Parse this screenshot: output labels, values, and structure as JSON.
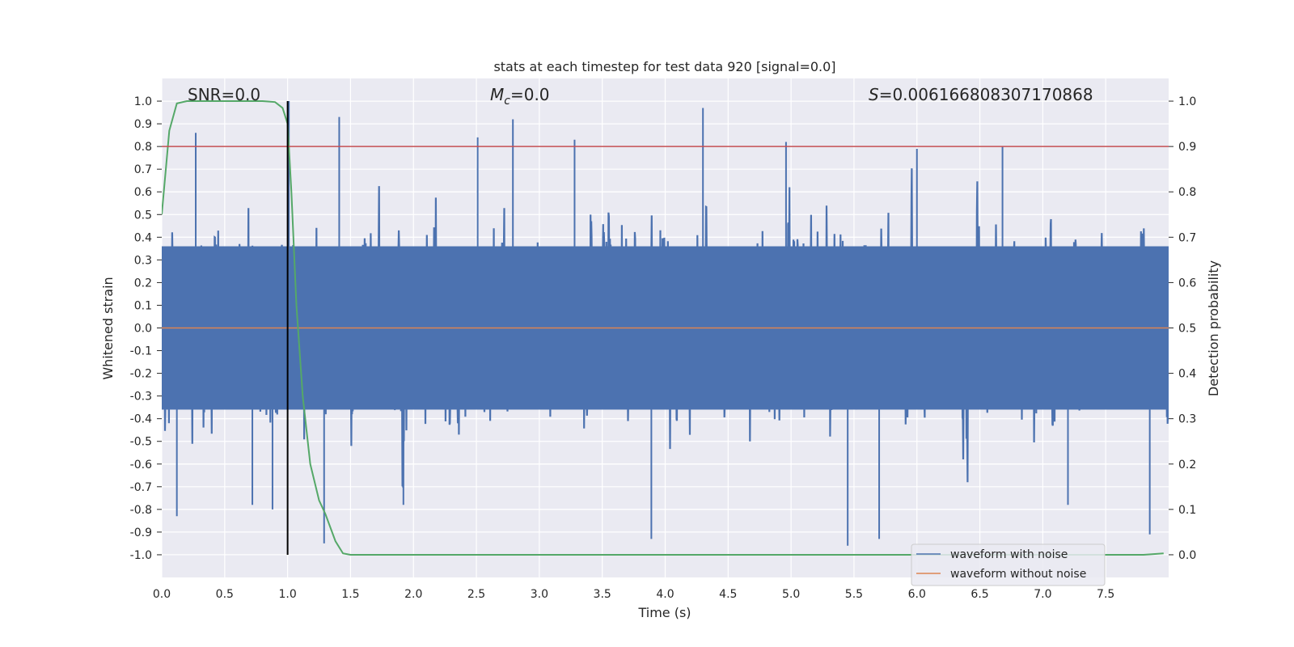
{
  "chart_data": {
    "type": "line",
    "title": "stats at each timestep for test data 920 [signal=0.0]",
    "xlabel": "Time (s)",
    "ylabel": "Whitened strain",
    "y2label": "Detection probability",
    "xlim": [
      0.0,
      8.0
    ],
    "ylim": [
      -1.1,
      1.1
    ],
    "y2lim": [
      -0.05,
      1.05
    ],
    "xticks": [
      "0.0",
      "0.5",
      "1.0",
      "1.5",
      "2.0",
      "2.5",
      "3.0",
      "3.5",
      "4.0",
      "4.5",
      "5.0",
      "5.5",
      "6.0",
      "6.5",
      "7.0",
      "7.5"
    ],
    "yticks": [
      "1.0",
      "0.9",
      "0.8",
      "0.7",
      "0.6",
      "0.5",
      "0.4",
      "0.3",
      "0.2",
      "0.1",
      "0.0",
      "-0.1",
      "-0.2",
      "-0.3",
      "-0.4",
      "-0.5",
      "-0.6",
      "-0.7",
      "-0.8",
      "-0.9",
      "-1.0"
    ],
    "y2ticks": [
      "1.0",
      "0.9",
      "0.8",
      "0.7",
      "0.6",
      "0.5",
      "0.4",
      "0.3",
      "0.2",
      "0.1",
      "0.0"
    ],
    "grid": true,
    "legend_position": "bottom-right",
    "annotations": {
      "snr_prefix": "SNR=",
      "snr_value": "0.0",
      "mc_symbol": "M",
      "mc_subscript": "c",
      "mc_value": "=0.0",
      "s_symbol": "S",
      "s_value": "=0.006166808307170868"
    },
    "series": [
      {
        "name": "waveform with noise",
        "color": "#4c72b0",
        "description_kind": "dense noise",
        "spikes": [
          {
            "x": 0.12,
            "y": -0.83
          },
          {
            "x": 0.27,
            "y": 0.86
          },
          {
            "x": 0.88,
            "y": -0.8
          },
          {
            "x": 1.01,
            "y": 1.0
          },
          {
            "x": 1.41,
            "y": 0.93
          },
          {
            "x": 1.29,
            "y": -0.95
          },
          {
            "x": 2.79,
            "y": 0.92
          },
          {
            "x": 3.89,
            "y": -0.93
          },
          {
            "x": 4.3,
            "y": 0.97
          },
          {
            "x": 5.45,
            "y": -0.96
          },
          {
            "x": 5.7,
            "y": -0.93
          },
          {
            "x": 7.85,
            "y": -0.91
          },
          {
            "x": 0.72,
            "y": -0.78
          },
          {
            "x": 1.92,
            "y": -0.78
          },
          {
            "x": 4.96,
            "y": 0.82
          },
          {
            "x": 6.68,
            "y": 0.8
          },
          {
            "x": 2.51,
            "y": 0.84
          },
          {
            "x": 3.28,
            "y": 0.83
          },
          {
            "x": 6.0,
            "y": 0.79
          },
          {
            "x": 7.2,
            "y": -0.78
          }
        ]
      },
      {
        "name": "waveform without noise",
        "color": "#dd8452",
        "points": [
          [
            0.0,
            0.0
          ],
          [
            8.0,
            0.0
          ]
        ]
      },
      {
        "name": "detection probability",
        "color": "#55a868",
        "axis": "right",
        "points": [
          [
            0.0,
            0.75
          ],
          [
            0.06,
            0.935
          ],
          [
            0.12,
            0.995
          ],
          [
            0.2,
            1.0
          ],
          [
            0.5,
            1.0
          ],
          [
            0.8,
            1.0
          ],
          [
            0.9,
            0.998
          ],
          [
            0.96,
            0.985
          ],
          [
            1.0,
            0.95
          ],
          [
            1.03,
            0.8
          ],
          [
            1.07,
            0.55
          ],
          [
            1.12,
            0.35
          ],
          [
            1.18,
            0.2
          ],
          [
            1.25,
            0.12
          ],
          [
            1.3,
            0.09
          ],
          [
            1.38,
            0.03
          ],
          [
            1.44,
            0.003
          ],
          [
            1.5,
            0.0
          ],
          [
            3.0,
            0.0
          ],
          [
            5.0,
            0.0
          ],
          [
            7.0,
            0.0
          ],
          [
            7.8,
            0.0
          ],
          [
            7.96,
            0.003
          ]
        ]
      }
    ],
    "vline": {
      "x": 1.0,
      "color": "#000000"
    },
    "hline": {
      "y": 0.9,
      "axis": "right",
      "color": "#c44e52"
    },
    "colors": {
      "axes_bg": "#eaeaf2",
      "grid": "#ffffff",
      "noise": "#4c72b0",
      "clean": "#dd8452",
      "prob": "#55a868",
      "threshold": "#c44e52"
    }
  }
}
